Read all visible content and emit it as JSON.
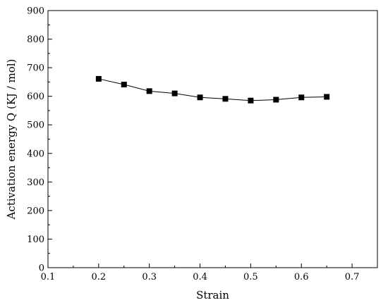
{
  "chart_data": {
    "type": "line",
    "title": "",
    "xlabel": "Strain",
    "ylabel": "Activation energy Q (KJ / mol)",
    "xlim": [
      0.1,
      0.75
    ],
    "ylim": [
      0,
      900
    ],
    "x_ticks": [
      "0.1",
      "0.2",
      "0.3",
      "0.4",
      "0.5",
      "0.6",
      "0.7"
    ],
    "y_ticks": [
      "0",
      "100",
      "200",
      "300",
      "400",
      "500",
      "600",
      "700",
      "800",
      "900"
    ],
    "grid": false,
    "legend": "none",
    "series": [
      {
        "marker": "square",
        "color": "#000000",
        "x": [
          0.2,
          0.25,
          0.3,
          0.35,
          0.4,
          0.45,
          0.5,
          0.55,
          0.6,
          0.65
        ],
        "y": [
          661,
          641,
          618,
          610,
          596,
          591,
          585,
          588,
          596,
          598
        ]
      }
    ]
  }
}
